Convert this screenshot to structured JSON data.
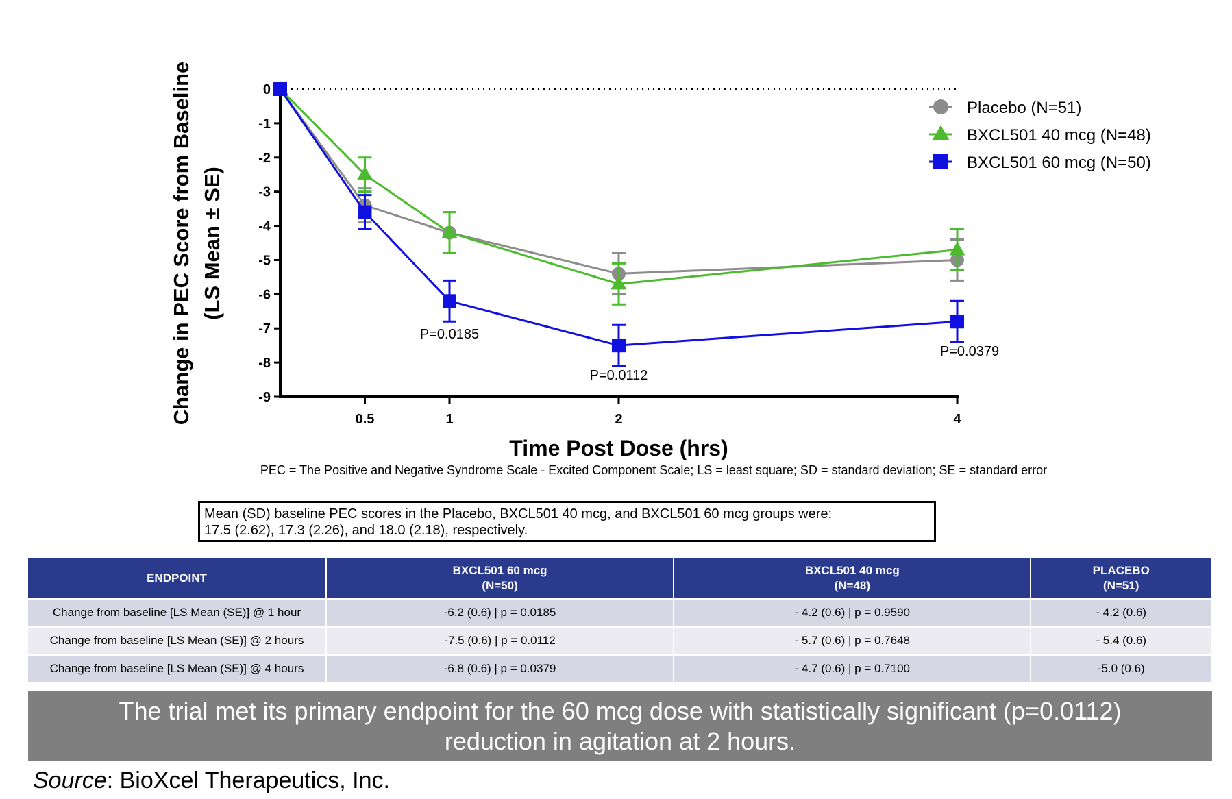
{
  "chart_data": {
    "type": "line",
    "xlabel": "Time Post Dose (hrs)",
    "ylabel_line1": "Change in PEC Score from Baseline",
    "ylabel_line2": "(LS Mean ± SE)",
    "x": [
      0,
      0.5,
      1,
      2,
      4
    ],
    "x_tick_labels": [
      "0.5",
      "1",
      "2",
      "4"
    ],
    "y_tick_labels": [
      "0",
      "-1",
      "-2",
      "-3",
      "-4",
      "-5",
      "-6",
      "-7",
      "-8",
      "-9"
    ],
    "xlim": [
      0,
      4
    ],
    "ylim": [
      -9,
      0
    ],
    "grid": false,
    "reference_line": 0,
    "legend_position": "top-right",
    "series": [
      {
        "name": "Placebo (N=51)",
        "color": "#8c8c8c",
        "marker": "circle",
        "values": [
          0,
          -3.4,
          -4.2,
          -5.4,
          -5.0
        ],
        "se": [
          0,
          0.5,
          0.6,
          0.6,
          0.6
        ]
      },
      {
        "name": "BXCL501 40 mcg (N=48)",
        "color": "#4cbb2e",
        "marker": "triangle",
        "values": [
          0,
          -2.5,
          -4.2,
          -5.7,
          -4.7
        ],
        "se": [
          0,
          0.5,
          0.6,
          0.6,
          0.6
        ]
      },
      {
        "name": "BXCL501 60 mcg (N=50)",
        "color": "#1010e0",
        "marker": "square",
        "values": [
          0,
          -3.6,
          -6.2,
          -7.5,
          -6.8
        ],
        "se": [
          0,
          0.5,
          0.6,
          0.6,
          0.6
        ]
      }
    ],
    "annotations": [
      {
        "text": "P=0.0185",
        "x": 1,
        "y": -7.3
      },
      {
        "text": "P=0.0112",
        "x": 2,
        "y": -8.5
      },
      {
        "text": "P=0.0379",
        "x": 4,
        "y": -7.8
      }
    ]
  },
  "footnote": "PEC = The Positive and Negative Syndrome Scale - Excited Component Scale; LS = least square; SD = standard deviation; SE = standard error",
  "baseline_box": {
    "line1": "Mean (SD) baseline PEC scores in the Placebo, BXCL501 40 mcg, and BXCL501 60 mcg groups were:",
    "line2": "17.5 (2.62), 17.3 (2.26), and 18.0 (2.18), respectively."
  },
  "table": {
    "headers": [
      {
        "line1": "ENDPOINT",
        "line2": ""
      },
      {
        "line1": "BXCL501 60 mcg",
        "line2": "(N=50)"
      },
      {
        "line1": "BXCL501 40 mcg",
        "line2": "(N=48)"
      },
      {
        "line1": "PLACEBO",
        "line2": "(N=51)"
      }
    ],
    "rows": [
      [
        "Change from baseline [LS Mean (SE)] @ 1 hour",
        "-6.2 (0.6) | p = 0.0185",
        "- 4.2 (0.6) | p = 0.9590",
        "- 4.2 (0.6)"
      ],
      [
        "Change from baseline [LS Mean (SE)] @ 2 hours",
        "-7.5 (0.6) | p = 0.0112",
        "- 5.7 (0.6) | p = 0.7648",
        "- 5.4 (0.6)"
      ],
      [
        "Change from baseline [LS Mean (SE)] @ 4 hours",
        "-6.8 (0.6) | p = 0.0379",
        "- 4.7 (0.6) | p = 0.7100",
        "-5.0 (0.6)"
      ]
    ],
    "header_color": "#2a3a8c"
  },
  "banner": {
    "line1": "The trial met its primary endpoint for the 60 mcg dose with statistically significant (p=0.0112)",
    "line2": "reduction in agitation at 2 hours."
  },
  "source": {
    "label": "Source",
    "text": ": BioXcel Therapeutics, Inc."
  }
}
